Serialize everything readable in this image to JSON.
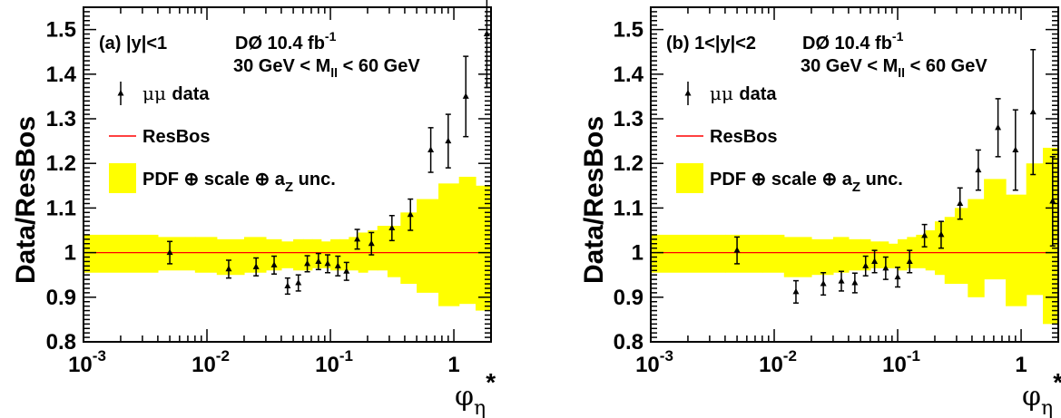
{
  "chart_data": [
    {
      "type": "scatter",
      "panel_label": "(a) |y|<1",
      "experiment_prefix": "DØ",
      "luminosity": "10.4 fb",
      "luminosity_exp": "-1",
      "mass_cut_prefix": "30 GeV < M",
      "mass_cut_sub": "ll",
      "mass_cut_suffix": " < 60 GeV",
      "ylabel": "Data/ResBos",
      "xlabel_main": "φ",
      "xlabel_sub": "η",
      "xlabel_sup": "*",
      "xscale": "log",
      "xlim": [
        0.001,
        2.0
      ],
      "ylim": [
        0.8,
        1.55
      ],
      "yticks": [
        "0.8",
        "0.9",
        "1",
        "1.1",
        "1.2",
        "1.3",
        "1.4",
        "1.5"
      ],
      "xticks": [
        {
          "base": "10",
          "exp": "-3"
        },
        {
          "base": "10",
          "exp": "-2"
        },
        {
          "base": "10",
          "exp": "-1"
        },
        {
          "base": "1",
          "exp": ""
        }
      ],
      "legend": {
        "data_label": "μμ data",
        "model_label": "ResBos",
        "band_label_main": "PDF ⊕ scale ⊕ a",
        "band_label_sub": "Z",
        "band_label_suffix": " unc."
      },
      "model_value": 1.0,
      "band": [
        {
          "x": [
            0.001,
            0.004
          ],
          "low": 0.955,
          "high": 1.04
        },
        {
          "x": [
            0.004,
            0.008
          ],
          "low": 0.96,
          "high": 1.035
        },
        {
          "x": [
            0.008,
            0.012
          ],
          "low": 0.955,
          "high": 1.035
        },
        {
          "x": [
            0.012,
            0.02
          ],
          "low": 0.95,
          "high": 1.03
        },
        {
          "x": [
            0.02,
            0.03
          ],
          "low": 0.955,
          "high": 1.035
        },
        {
          "x": [
            0.03,
            0.04
          ],
          "low": 0.96,
          "high": 1.03
        },
        {
          "x": [
            0.04,
            0.05
          ],
          "low": 0.965,
          "high": 1.025
        },
        {
          "x": [
            0.05,
            0.06
          ],
          "low": 0.96,
          "high": 1.03
        },
        {
          "x": [
            0.06,
            0.071
          ],
          "low": 0.96,
          "high": 1.03
        },
        {
          "x": [
            0.071,
            0.084
          ],
          "low": 0.965,
          "high": 1.03
        },
        {
          "x": [
            0.084,
            0.1
          ],
          "low": 0.965,
          "high": 1.025
        },
        {
          "x": [
            0.1,
            0.119
          ],
          "low": 0.96,
          "high": 1.03
        },
        {
          "x": [
            0.119,
            0.141
          ],
          "low": 0.96,
          "high": 1.03
        },
        {
          "x": [
            0.141,
            0.168
          ],
          "low": 0.96,
          "high": 1.035
        },
        {
          "x": [
            0.168,
            0.2
          ],
          "low": 0.955,
          "high": 1.045
        },
        {
          "x": [
            0.2,
            0.24
          ],
          "low": 0.96,
          "high": 1.05
        },
        {
          "x": [
            0.24,
            0.29
          ],
          "low": 0.96,
          "high": 1.06
        },
        {
          "x": [
            0.29,
            0.37
          ],
          "low": 0.945,
          "high": 1.06
        },
        {
          "x": [
            0.37,
            0.5
          ],
          "low": 0.93,
          "high": 1.09
        },
        {
          "x": [
            0.5,
            0.75
          ],
          "low": 0.91,
          "high": 1.12
        },
        {
          "x": [
            0.75,
            1.1
          ],
          "low": 0.88,
          "high": 1.155
        },
        {
          "x": [
            1.1,
            1.5
          ],
          "low": 0.885,
          "high": 1.17
        },
        {
          "x": [
            1.5,
            2.0
          ],
          "low": 0.87,
          "high": 1.15
        }
      ],
      "points": [
        {
          "x": 0.005,
          "y": 1.0,
          "err": 0.025
        },
        {
          "x": 0.015,
          "y": 0.963,
          "err": 0.02
        },
        {
          "x": 0.025,
          "y": 0.968,
          "err": 0.02
        },
        {
          "x": 0.035,
          "y": 0.972,
          "err": 0.02
        },
        {
          "x": 0.045,
          "y": 0.925,
          "err": 0.018
        },
        {
          "x": 0.055,
          "y": 0.932,
          "err": 0.018
        },
        {
          "x": 0.065,
          "y": 0.975,
          "err": 0.018
        },
        {
          "x": 0.08,
          "y": 0.98,
          "err": 0.018
        },
        {
          "x": 0.095,
          "y": 0.975,
          "err": 0.02
        },
        {
          "x": 0.115,
          "y": 0.97,
          "err": 0.022
        },
        {
          "x": 0.135,
          "y": 0.958,
          "err": 0.02
        },
        {
          "x": 0.165,
          "y": 1.03,
          "err": 0.022
        },
        {
          "x": 0.215,
          "y": 1.02,
          "err": 0.025
        },
        {
          "x": 0.315,
          "y": 1.055,
          "err": 0.028
        },
        {
          "x": 0.445,
          "y": 1.085,
          "err": 0.035
        },
        {
          "x": 0.65,
          "y": 1.23,
          "err": 0.05
        },
        {
          "x": 0.9,
          "y": 1.25,
          "err": 0.06
        },
        {
          "x": 1.25,
          "y": 1.35,
          "err": 0.09
        },
        {
          "x": 1.85,
          "y": 1.49,
          "err": 0.12
        }
      ]
    },
    {
      "type": "scatter",
      "panel_label": "(b) 1<|y|<2",
      "experiment_prefix": "DØ",
      "luminosity": "10.4 fb",
      "luminosity_exp": "-1",
      "mass_cut_prefix": "30 GeV < M",
      "mass_cut_sub": "ll",
      "mass_cut_suffix": " < 60 GeV",
      "ylabel": "Data/ResBos",
      "xlabel_main": "φ",
      "xlabel_sub": "η",
      "xlabel_sup": "*",
      "xscale": "log",
      "xlim": [
        0.001,
        2.0
      ],
      "ylim": [
        0.8,
        1.55
      ],
      "yticks": [
        "0.8",
        "0.9",
        "1",
        "1.1",
        "1.2",
        "1.3",
        "1.4",
        "1.5"
      ],
      "xticks": [
        {
          "base": "10",
          "exp": "-3"
        },
        {
          "base": "10",
          "exp": "-2"
        },
        {
          "base": "10",
          "exp": "-1"
        },
        {
          "base": "1",
          "exp": ""
        }
      ],
      "legend": {
        "data_label": "μμ data",
        "model_label": "ResBos",
        "band_label_main": "PDF ⊕ scale ⊕ a",
        "band_label_sub": "Z",
        "band_label_suffix": " unc."
      },
      "model_value": 1.0,
      "band": [
        {
          "x": [
            0.001,
            0.004
          ],
          "low": 0.955,
          "high": 1.04
        },
        {
          "x": [
            0.004,
            0.008
          ],
          "low": 0.955,
          "high": 1.04
        },
        {
          "x": [
            0.008,
            0.012
          ],
          "low": 0.955,
          "high": 1.04
        },
        {
          "x": [
            0.012,
            0.02
          ],
          "low": 0.945,
          "high": 1.035
        },
        {
          "x": [
            0.02,
            0.03
          ],
          "low": 0.95,
          "high": 1.03
        },
        {
          "x": [
            0.03,
            0.04
          ],
          "low": 0.955,
          "high": 1.035
        },
        {
          "x": [
            0.04,
            0.05
          ],
          "low": 0.96,
          "high": 1.03
        },
        {
          "x": [
            0.05,
            0.06
          ],
          "low": 0.96,
          "high": 1.03
        },
        {
          "x": [
            0.06,
            0.071
          ],
          "low": 0.965,
          "high": 1.025
        },
        {
          "x": [
            0.071,
            0.084
          ],
          "low": 0.965,
          "high": 1.025
        },
        {
          "x": [
            0.084,
            0.1
          ],
          "low": 0.965,
          "high": 1.02
        },
        {
          "x": [
            0.1,
            0.119
          ],
          "low": 0.96,
          "high": 1.03
        },
        {
          "x": [
            0.119,
            0.141
          ],
          "low": 0.965,
          "high": 1.035
        },
        {
          "x": [
            0.141,
            0.168
          ],
          "low": 0.965,
          "high": 1.04
        },
        {
          "x": [
            0.168,
            0.2
          ],
          "low": 0.96,
          "high": 1.05
        },
        {
          "x": [
            0.2,
            0.24
          ],
          "low": 0.95,
          "high": 1.07
        },
        {
          "x": [
            0.24,
            0.29
          ],
          "low": 0.93,
          "high": 1.08
        },
        {
          "x": [
            0.29,
            0.37
          ],
          "low": 0.93,
          "high": 1.1
        },
        {
          "x": [
            0.37,
            0.5
          ],
          "low": 0.9,
          "high": 1.12
        },
        {
          "x": [
            0.5,
            0.75
          ],
          "low": 0.94,
          "high": 1.165
        },
        {
          "x": [
            0.75,
            1.1
          ],
          "low": 0.88,
          "high": 1.13
        },
        {
          "x": [
            1.1,
            1.5
          ],
          "low": 0.905,
          "high": 1.2
        },
        {
          "x": [
            1.5,
            2.0
          ],
          "low": 0.84,
          "high": 1.235
        }
      ],
      "points": [
        {
          "x": 0.005,
          "y": 1.005,
          "err": 0.03
        },
        {
          "x": 0.015,
          "y": 0.912,
          "err": 0.025
        },
        {
          "x": 0.025,
          "y": 0.93,
          "err": 0.025
        },
        {
          "x": 0.035,
          "y": 0.936,
          "err": 0.022
        },
        {
          "x": 0.045,
          "y": 0.932,
          "err": 0.022
        },
        {
          "x": 0.055,
          "y": 0.97,
          "err": 0.022
        },
        {
          "x": 0.065,
          "y": 0.98,
          "err": 0.025
        },
        {
          "x": 0.08,
          "y": 0.965,
          "err": 0.025
        },
        {
          "x": 0.1,
          "y": 0.945,
          "err": 0.022
        },
        {
          "x": 0.125,
          "y": 0.98,
          "err": 0.025
        },
        {
          "x": 0.165,
          "y": 1.038,
          "err": 0.025
        },
        {
          "x": 0.225,
          "y": 1.04,
          "err": 0.03
        },
        {
          "x": 0.32,
          "y": 1.11,
          "err": 0.035
        },
        {
          "x": 0.45,
          "y": 1.185,
          "err": 0.045
        },
        {
          "x": 0.65,
          "y": 1.28,
          "err": 0.065
        },
        {
          "x": 0.9,
          "y": 1.23,
          "err": 0.09
        },
        {
          "x": 1.25,
          "y": 1.315,
          "err": 0.14
        },
        {
          "x": 1.8,
          "y": 1.115,
          "err": 0.1
        }
      ]
    }
  ]
}
